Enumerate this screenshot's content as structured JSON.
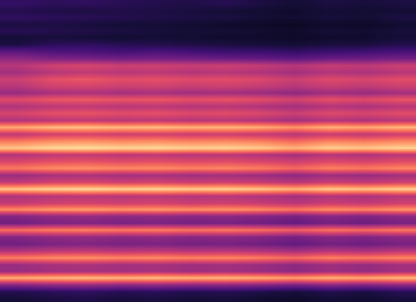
{
  "chart_data": {
    "type": "heatmap",
    "color": "magma",
    "tick_labels": false,
    "zlim": [
      0,
      1
    ],
    "cells": [
      [
        0.18,
        0.16,
        0.17,
        0.15,
        0.14,
        0.13,
        0.15,
        0.12,
        0.1,
        0.12,
        0.11,
        0.12
      ],
      [
        0.14,
        0.13,
        0.12,
        0.13,
        0.12,
        0.11,
        0.1,
        0.09,
        0.08,
        0.1,
        0.09,
        0.1
      ],
      [
        0.17,
        0.16,
        0.15,
        0.14,
        0.13,
        0.12,
        0.12,
        0.1,
        0.09,
        0.11,
        0.1,
        0.12
      ],
      [
        0.12,
        0.12,
        0.11,
        0.1,
        0.1,
        0.09,
        0.08,
        0.07,
        0.06,
        0.08,
        0.07,
        0.09
      ],
      [
        0.15,
        0.14,
        0.13,
        0.12,
        0.11,
        0.1,
        0.1,
        0.09,
        0.08,
        0.1,
        0.09,
        0.11
      ],
      [
        0.1,
        0.11,
        0.1,
        0.09,
        0.1,
        0.09,
        0.08,
        0.08,
        0.07,
        0.08,
        0.08,
        0.1
      ],
      [
        0.12,
        0.16,
        0.17,
        0.15,
        0.14,
        0.13,
        0.12,
        0.11,
        0.1,
        0.12,
        0.12,
        0.14
      ],
      [
        0.28,
        0.25,
        0.24,
        0.22,
        0.24,
        0.22,
        0.2,
        0.2,
        0.18,
        0.2,
        0.21,
        0.23
      ],
      [
        0.4,
        0.36,
        0.35,
        0.33,
        0.34,
        0.33,
        0.31,
        0.3,
        0.28,
        0.31,
        0.32,
        0.34
      ],
      [
        0.5,
        0.56,
        0.58,
        0.55,
        0.56,
        0.54,
        0.55,
        0.53,
        0.5,
        0.54,
        0.52,
        0.55
      ],
      [
        0.45,
        0.5,
        0.52,
        0.5,
        0.51,
        0.49,
        0.5,
        0.48,
        0.45,
        0.49,
        0.47,
        0.5
      ],
      [
        0.55,
        0.62,
        0.64,
        0.61,
        0.62,
        0.6,
        0.61,
        0.59,
        0.55,
        0.6,
        0.58,
        0.61
      ],
      [
        0.5,
        0.56,
        0.57,
        0.55,
        0.56,
        0.54,
        0.55,
        0.53,
        0.5,
        0.54,
        0.52,
        0.55
      ],
      [
        0.42,
        0.46,
        0.47,
        0.45,
        0.46,
        0.44,
        0.45,
        0.43,
        0.4,
        0.44,
        0.42,
        0.45
      ],
      [
        0.6,
        0.64,
        0.65,
        0.63,
        0.64,
        0.62,
        0.63,
        0.61,
        0.57,
        0.62,
        0.6,
        0.63
      ],
      [
        0.48,
        0.51,
        0.52,
        0.5,
        0.51,
        0.49,
        0.5,
        0.48,
        0.45,
        0.49,
        0.47,
        0.5
      ],
      [
        0.58,
        0.62,
        0.63,
        0.61,
        0.62,
        0.6,
        0.61,
        0.59,
        0.55,
        0.6,
        0.58,
        0.61
      ],
      [
        0.48,
        0.5,
        0.52,
        0.5,
        0.51,
        0.49,
        0.5,
        0.48,
        0.45,
        0.49,
        0.47,
        0.5
      ],
      [
        0.82,
        0.86,
        0.87,
        0.85,
        0.86,
        0.84,
        0.85,
        0.83,
        0.78,
        0.84,
        0.82,
        0.85
      ],
      [
        0.52,
        0.56,
        0.57,
        0.55,
        0.56,
        0.54,
        0.55,
        0.53,
        0.5,
        0.54,
        0.52,
        0.55
      ],
      [
        0.72,
        0.76,
        0.77,
        0.75,
        0.76,
        0.74,
        0.75,
        0.73,
        0.68,
        0.74,
        0.72,
        0.75
      ],
      [
        0.88,
        0.92,
        0.93,
        0.91,
        0.92,
        0.9,
        0.91,
        0.89,
        0.84,
        0.9,
        0.88,
        0.91
      ],
      [
        0.48,
        0.51,
        0.52,
        0.5,
        0.51,
        0.49,
        0.5,
        0.48,
        0.45,
        0.49,
        0.47,
        0.5
      ],
      [
        0.58,
        0.61,
        0.62,
        0.6,
        0.61,
        0.59,
        0.6,
        0.58,
        0.55,
        0.59,
        0.57,
        0.6
      ],
      [
        0.72,
        0.76,
        0.77,
        0.75,
        0.76,
        0.74,
        0.75,
        0.73,
        0.68,
        0.74,
        0.72,
        0.75
      ],
      [
        0.43,
        0.46,
        0.47,
        0.45,
        0.46,
        0.44,
        0.45,
        0.43,
        0.4,
        0.44,
        0.42,
        0.45
      ],
      [
        0.52,
        0.56,
        0.57,
        0.55,
        0.56,
        0.54,
        0.55,
        0.53,
        0.5,
        0.54,
        0.52,
        0.55
      ],
      [
        0.88,
        0.91,
        0.92,
        0.9,
        0.91,
        0.89,
        0.9,
        0.88,
        0.84,
        0.89,
        0.87,
        0.9
      ],
      [
        0.48,
        0.5,
        0.51,
        0.5,
        0.51,
        0.49,
        0.5,
        0.48,
        0.45,
        0.49,
        0.47,
        0.5
      ],
      [
        0.52,
        0.55,
        0.56,
        0.55,
        0.56,
        0.54,
        0.55,
        0.53,
        0.5,
        0.54,
        0.52,
        0.55
      ],
      [
        0.76,
        0.79,
        0.8,
        0.78,
        0.79,
        0.77,
        0.78,
        0.76,
        0.72,
        0.77,
        0.75,
        0.78
      ],
      [
        0.38,
        0.41,
        0.42,
        0.4,
        0.41,
        0.39,
        0.4,
        0.38,
        0.35,
        0.39,
        0.37,
        0.4
      ],
      [
        0.33,
        0.36,
        0.37,
        0.35,
        0.36,
        0.34,
        0.35,
        0.33,
        0.3,
        0.34,
        0.32,
        0.35
      ],
      [
        0.7,
        0.73,
        0.74,
        0.72,
        0.73,
        0.71,
        0.72,
        0.7,
        0.66,
        0.71,
        0.69,
        0.72
      ],
      [
        0.38,
        0.41,
        0.42,
        0.4,
        0.41,
        0.39,
        0.4,
        0.38,
        0.35,
        0.39,
        0.37,
        0.4
      ],
      [
        0.33,
        0.36,
        0.37,
        0.35,
        0.36,
        0.34,
        0.35,
        0.33,
        0.3,
        0.34,
        0.32,
        0.35
      ],
      [
        0.48,
        0.51,
        0.52,
        0.5,
        0.51,
        0.49,
        0.5,
        0.48,
        0.45,
        0.49,
        0.47,
        0.5
      ],
      [
        0.73,
        0.76,
        0.77,
        0.75,
        0.76,
        0.74,
        0.75,
        0.73,
        0.69,
        0.74,
        0.72,
        0.75
      ],
      [
        0.43,
        0.46,
        0.47,
        0.45,
        0.46,
        0.44,
        0.45,
        0.43,
        0.4,
        0.44,
        0.42,
        0.45
      ],
      [
        0.43,
        0.45,
        0.46,
        0.45,
        0.46,
        0.44,
        0.45,
        0.43,
        0.4,
        0.44,
        0.42,
        0.45
      ],
      [
        0.83,
        0.85,
        0.86,
        0.85,
        0.86,
        0.84,
        0.85,
        0.83,
        0.8,
        0.84,
        0.82,
        0.85
      ],
      [
        0.38,
        0.41,
        0.42,
        0.4,
        0.41,
        0.39,
        0.4,
        0.38,
        0.35,
        0.39,
        0.37,
        0.4
      ],
      [
        0.14,
        0.16,
        0.17,
        0.15,
        0.16,
        0.14,
        0.15,
        0.13,
        0.11,
        0.14,
        0.12,
        0.15
      ],
      [
        0.1,
        0.12,
        0.13,
        0.11,
        0.12,
        0.1,
        0.11,
        0.09,
        0.08,
        0.1,
        0.09,
        0.11
      ]
    ]
  }
}
